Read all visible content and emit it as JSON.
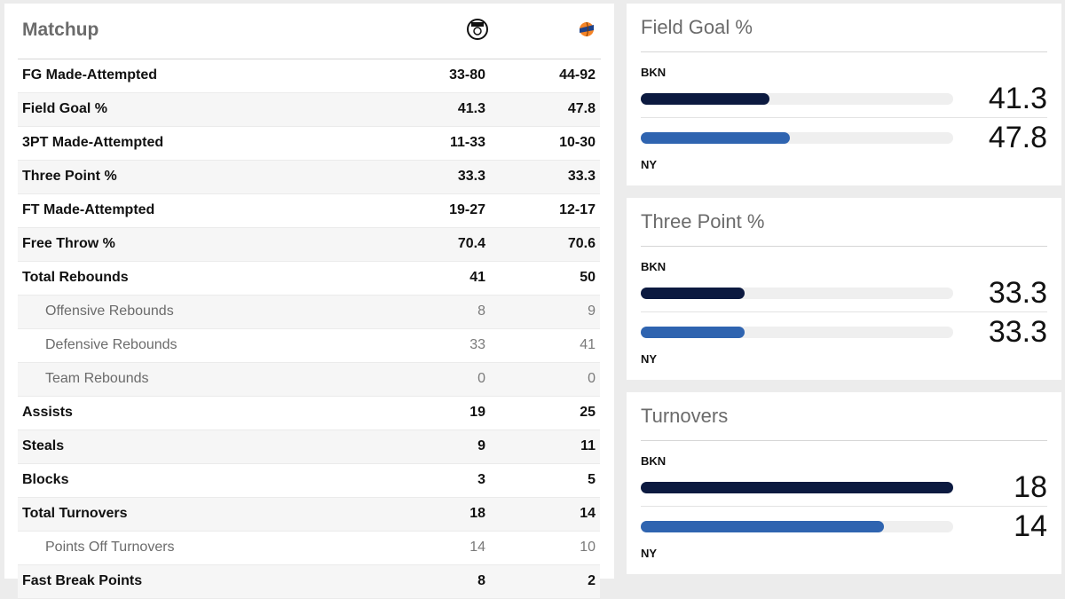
{
  "matchup": {
    "title": "Matchup",
    "teams": [
      {
        "abbr": "BKN",
        "logo": "nets-logo",
        "color": "#0c1a40"
      },
      {
        "abbr": "NY",
        "logo": "knicks-logo",
        "color": "#2f64b0"
      }
    ],
    "rows": [
      {
        "label": "FG Made-Attempted",
        "bkn": "33-80",
        "ny": "44-92",
        "sub": false
      },
      {
        "label": "Field Goal %",
        "bkn": "41.3",
        "ny": "47.8",
        "sub": false
      },
      {
        "label": "3PT Made-Attempted",
        "bkn": "11-33",
        "ny": "10-30",
        "sub": false
      },
      {
        "label": "Three Point %",
        "bkn": "33.3",
        "ny": "33.3",
        "sub": false
      },
      {
        "label": "FT Made-Attempted",
        "bkn": "19-27",
        "ny": "12-17",
        "sub": false
      },
      {
        "label": "Free Throw %",
        "bkn": "70.4",
        "ny": "70.6",
        "sub": false
      },
      {
        "label": "Total Rebounds",
        "bkn": "41",
        "ny": "50",
        "sub": false
      },
      {
        "label": "Offensive Rebounds",
        "bkn": "8",
        "ny": "9",
        "sub": true
      },
      {
        "label": "Defensive Rebounds",
        "bkn": "33",
        "ny": "41",
        "sub": true
      },
      {
        "label": "Team Rebounds",
        "bkn": "0",
        "ny": "0",
        "sub": true
      },
      {
        "label": "Assists",
        "bkn": "19",
        "ny": "25",
        "sub": false
      },
      {
        "label": "Steals",
        "bkn": "9",
        "ny": "11",
        "sub": false
      },
      {
        "label": "Blocks",
        "bkn": "3",
        "ny": "5",
        "sub": false
      },
      {
        "label": "Total Turnovers",
        "bkn": "18",
        "ny": "14",
        "sub": false
      },
      {
        "label": "Points Off Turnovers",
        "bkn": "14",
        "ny": "10",
        "sub": true
      },
      {
        "label": "Fast Break Points",
        "bkn": "8",
        "ny": "2",
        "sub": false
      }
    ]
  },
  "cards": [
    {
      "title": "Field Goal %",
      "bkn_label": "BKN",
      "ny_label": "NY",
      "bkn_value": "41.3",
      "ny_value": "47.8",
      "bkn_fill": 0.413,
      "ny_fill": 0.478
    },
    {
      "title": "Three Point %",
      "bkn_label": "BKN",
      "ny_label": "NY",
      "bkn_value": "33.3",
      "ny_value": "33.3",
      "bkn_fill": 0.333,
      "ny_fill": 0.333
    },
    {
      "title": "Turnovers",
      "bkn_label": "BKN",
      "ny_label": "NY",
      "bkn_value": "18",
      "ny_value": "14",
      "bkn_fill": 1.0,
      "ny_fill": 0.778
    }
  ]
}
